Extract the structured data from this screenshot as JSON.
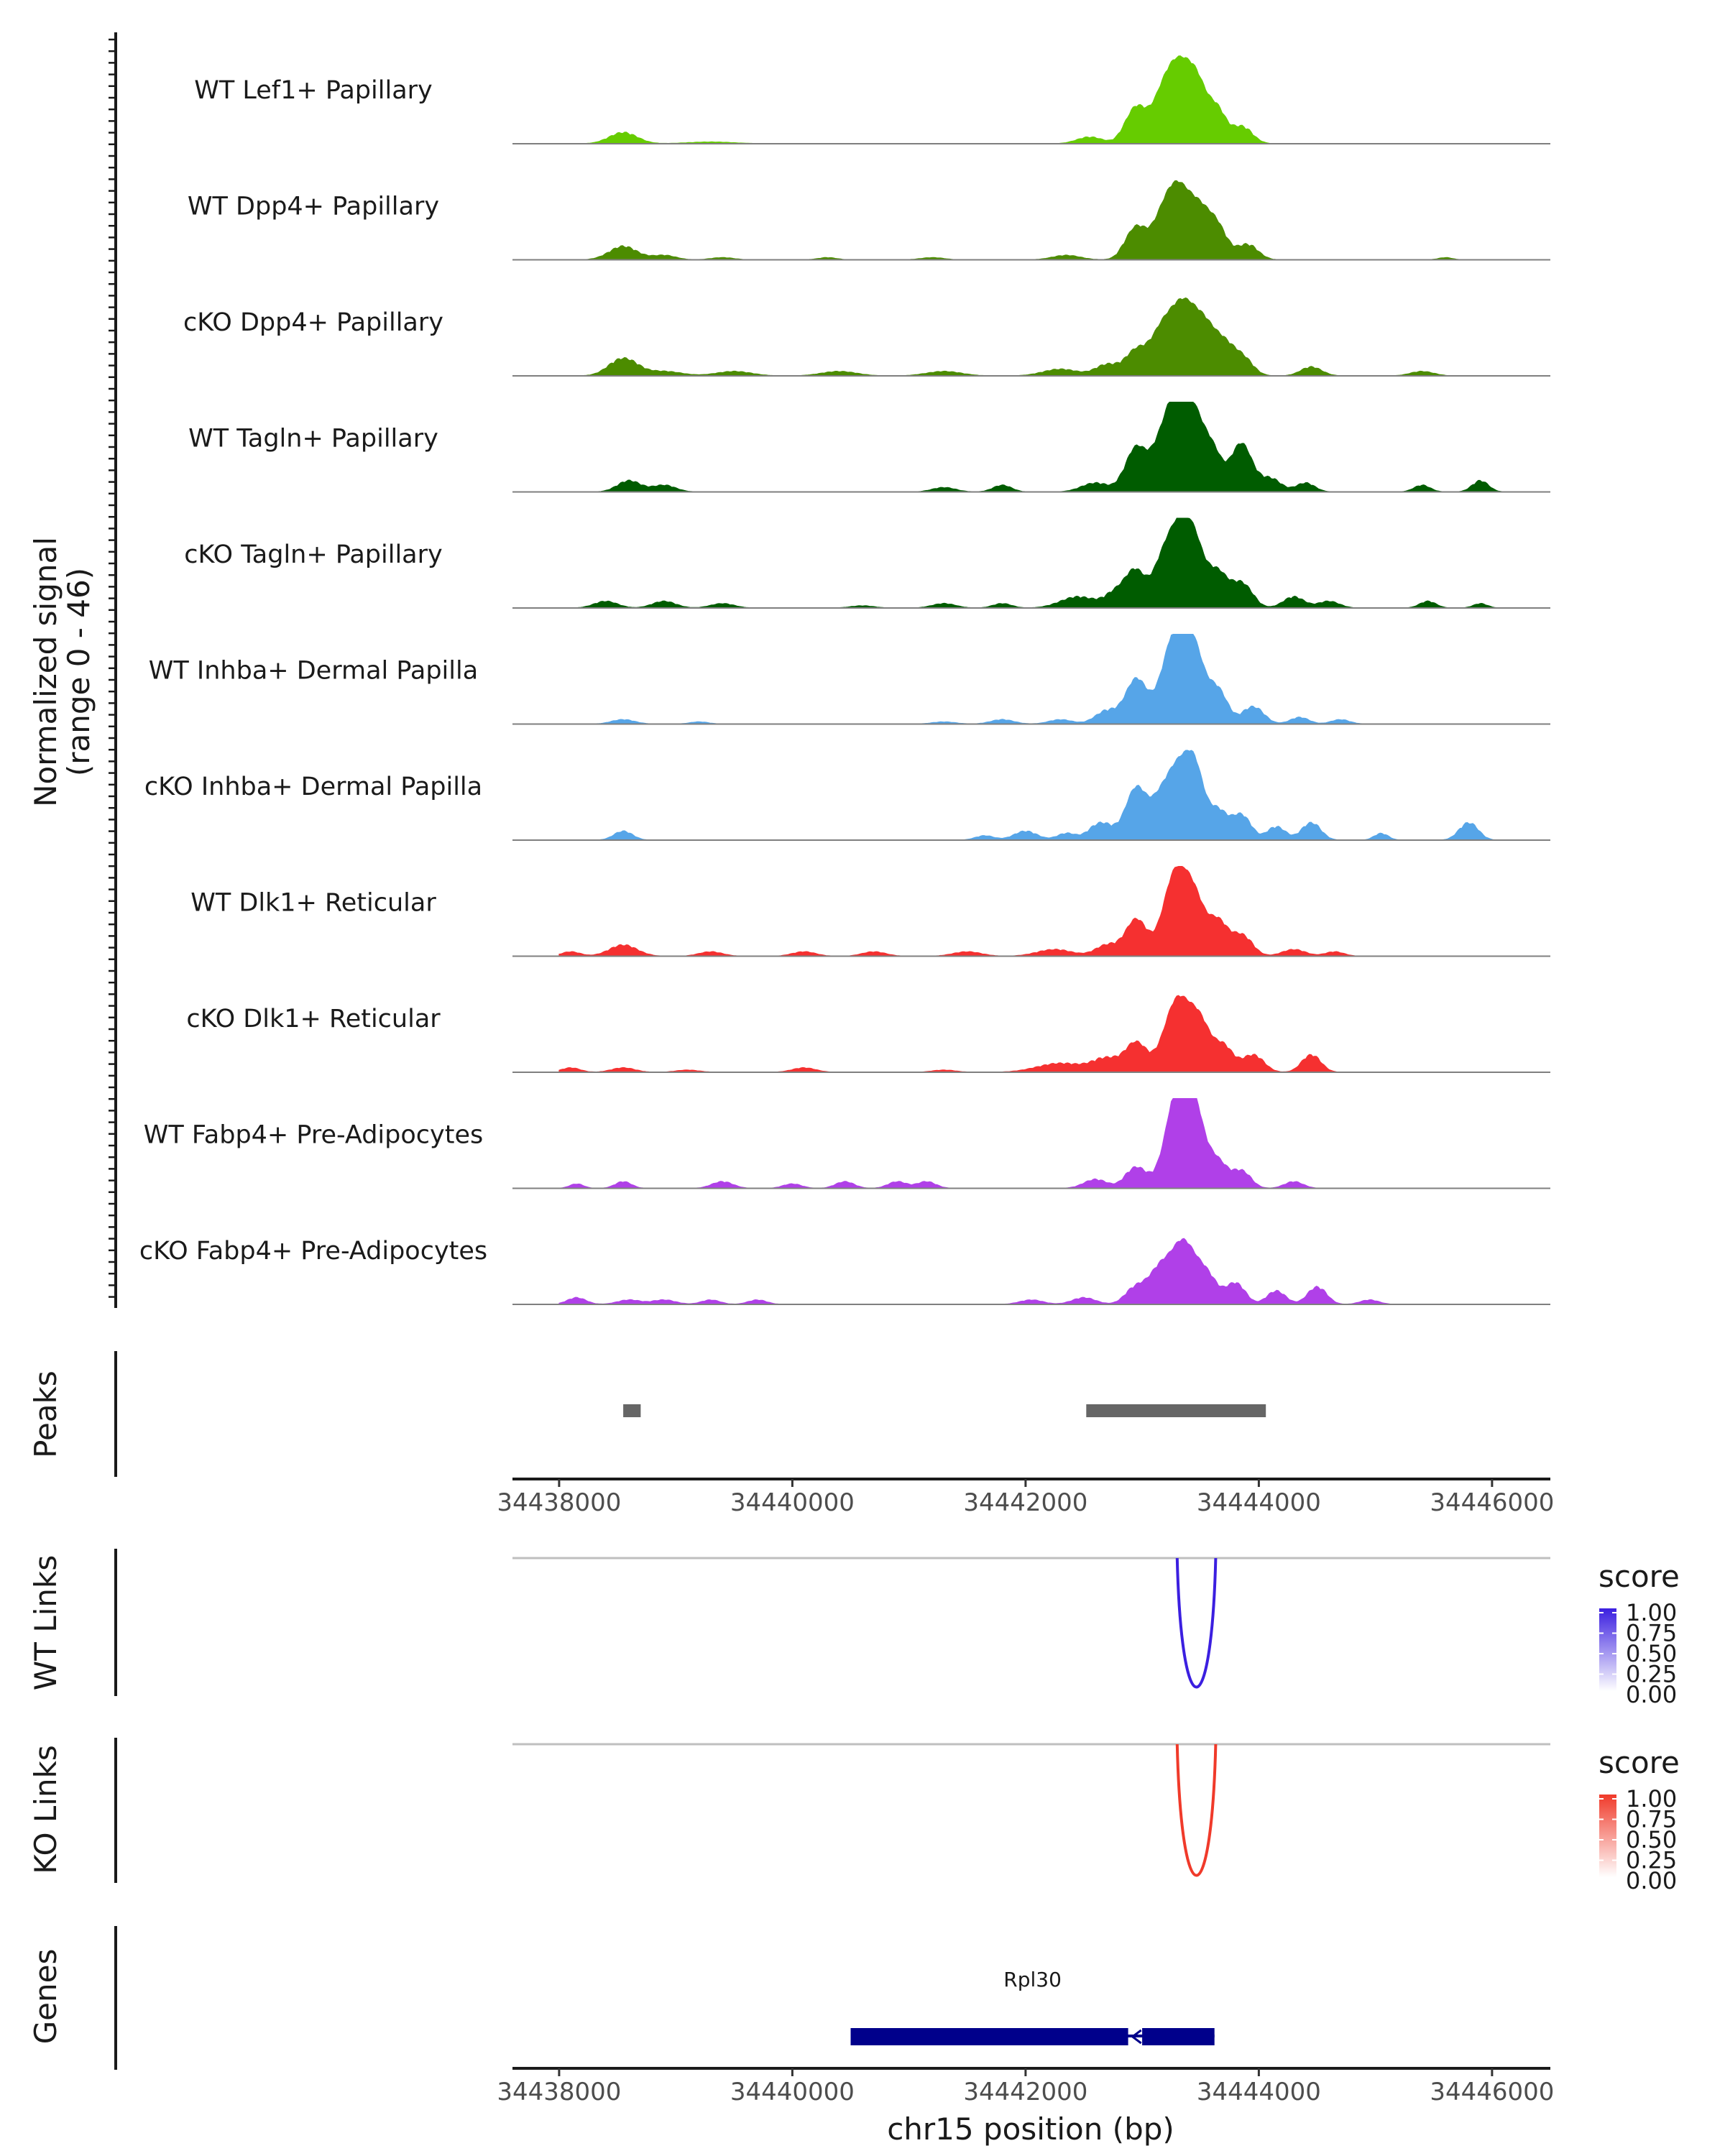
{
  "chart_data": {
    "type": "area",
    "title": "",
    "region": "chr15:34438000-34446000",
    "xlim": [
      34437600,
      34446500
    ],
    "x_ticks": [
      "34438000",
      "34440000",
      "34442000",
      "34444000",
      "34446000"
    ],
    "x_tick_values": [
      34438000,
      34440000,
      34442000,
      34444000,
      34446000
    ],
    "xlabel": "chr15 position (bp)",
    "coverage_ylabel": "Normalized signal",
    "coverage_yrange": "(range 0 - 46)",
    "ylim": [
      0,
      46
    ],
    "series": [
      {
        "name": "WT Lef1+ Papillary",
        "color": "#66cc00",
        "peaks": [
          [
            34438550,
            5,
            120
          ],
          [
            34439300,
            0.8,
            200
          ],
          [
            34442550,
            3,
            110
          ],
          [
            34442950,
            18,
            90
          ],
          [
            34443150,
            12,
            80
          ],
          [
            34443300,
            38,
            110
          ],
          [
            34443480,
            25,
            90
          ],
          [
            34443650,
            14,
            70
          ],
          [
            34443850,
            8,
            90
          ]
        ]
      },
      {
        "name": "WT Dpp4+ Papillary",
        "color": "#4c8c00",
        "peaks": [
          [
            34438550,
            6,
            120
          ],
          [
            34438900,
            2,
            100
          ],
          [
            34439400,
            1,
            100
          ],
          [
            34440300,
            1,
            80
          ],
          [
            34441200,
            1,
            100
          ],
          [
            34442350,
            2,
            120
          ],
          [
            34442950,
            16,
            90
          ],
          [
            34443150,
            10,
            80
          ],
          [
            34443300,
            36,
            110
          ],
          [
            34443500,
            20,
            90
          ],
          [
            34443650,
            14,
            80
          ],
          [
            34443900,
            7,
            90
          ],
          [
            34445600,
            1,
            60
          ]
        ]
      },
      {
        "name": "cKO Dpp4+ Papillary",
        "color": "#4c8c00",
        "peaks": [
          [
            34438550,
            8,
            120
          ],
          [
            34438900,
            2,
            150
          ],
          [
            34439500,
            2,
            150
          ],
          [
            34440400,
            2,
            150
          ],
          [
            34441300,
            2,
            150
          ],
          [
            34442300,
            3,
            150
          ],
          [
            34442700,
            5,
            100
          ],
          [
            34442950,
            12,
            90
          ],
          [
            34443150,
            16,
            90
          ],
          [
            34443350,
            36,
            120
          ],
          [
            34443550,
            18,
            90
          ],
          [
            34443700,
            12,
            80
          ],
          [
            34443850,
            9,
            90
          ],
          [
            34444450,
            4,
            90
          ],
          [
            34445400,
            2,
            100
          ]
        ]
      },
      {
        "name": "WT Tagln+ Papillary",
        "color": "#005c00",
        "peaks": [
          [
            34438600,
            5,
            100
          ],
          [
            34438900,
            3,
            100
          ],
          [
            34441300,
            2,
            100
          ],
          [
            34441800,
            3,
            80
          ],
          [
            34442600,
            4,
            120
          ],
          [
            34442950,
            22,
            90
          ],
          [
            34443150,
            18,
            80
          ],
          [
            34443300,
            46,
            90
          ],
          [
            34443450,
            30,
            80
          ],
          [
            34443600,
            20,
            80
          ],
          [
            34443850,
            24,
            90
          ],
          [
            34444100,
            6,
            90
          ],
          [
            34444400,
            4,
            80
          ],
          [
            34445400,
            3,
            70
          ],
          [
            34445900,
            5,
            70
          ]
        ]
      },
      {
        "name": "cKO Tagln+ Papillary",
        "color": "#005c00",
        "peaks": [
          [
            34438400,
            3,
            100
          ],
          [
            34438900,
            3,
            100
          ],
          [
            34439400,
            2,
            100
          ],
          [
            34440600,
            1,
            100
          ],
          [
            34441300,
            2,
            100
          ],
          [
            34441800,
            2,
            80
          ],
          [
            34442450,
            5,
            150
          ],
          [
            34442800,
            8,
            100
          ],
          [
            34442950,
            16,
            80
          ],
          [
            34443150,
            14,
            80
          ],
          [
            34443300,
            36,
            100
          ],
          [
            34443450,
            28,
            90
          ],
          [
            34443650,
            16,
            80
          ],
          [
            34443850,
            12,
            90
          ],
          [
            34444300,
            5,
            90
          ],
          [
            34444600,
            3,
            90
          ],
          [
            34445450,
            3,
            70
          ],
          [
            34445900,
            2,
            60
          ]
        ]
      },
      {
        "name": "WT Inhba+ Dermal Papilla",
        "color": "#56a5e8",
        "peaks": [
          [
            34438550,
            2,
            100
          ],
          [
            34439200,
            1,
            80
          ],
          [
            34441300,
            1,
            100
          ],
          [
            34441800,
            2,
            100
          ],
          [
            34442300,
            2,
            100
          ],
          [
            34442700,
            6,
            100
          ],
          [
            34442950,
            22,
            90
          ],
          [
            34443280,
            44,
            110
          ],
          [
            34443450,
            30,
            90
          ],
          [
            34443650,
            16,
            80
          ],
          [
            34443950,
            8,
            90
          ],
          [
            34444350,
            3,
            80
          ],
          [
            34444700,
            2,
            80
          ]
        ]
      },
      {
        "name": "cKO Inhba+ Dermal Papilla",
        "color": "#56a5e8",
        "peaks": [
          [
            34438550,
            4,
            80
          ],
          [
            34441650,
            2,
            80
          ],
          [
            34442000,
            4,
            100
          ],
          [
            34442350,
            3,
            80
          ],
          [
            34442650,
            8,
            100
          ],
          [
            34442950,
            26,
            90
          ],
          [
            34443150,
            16,
            80
          ],
          [
            34443300,
            32,
            90
          ],
          [
            34443450,
            34,
            80
          ],
          [
            34443650,
            14,
            80
          ],
          [
            34443850,
            12,
            80
          ],
          [
            34444150,
            6,
            80
          ],
          [
            34444450,
            8,
            80
          ],
          [
            34445050,
            3,
            60
          ],
          [
            34445800,
            8,
            80
          ]
        ]
      },
      {
        "name": "WT Dlk1+ Reticular",
        "color": "#f53030",
        "peaks": [
          [
            34438100,
            2,
            80
          ],
          [
            34438550,
            5,
            120
          ],
          [
            34439300,
            2,
            100
          ],
          [
            34440100,
            2,
            100
          ],
          [
            34440700,
            2,
            100
          ],
          [
            34441500,
            2,
            120
          ],
          [
            34442250,
            3,
            150
          ],
          [
            34442700,
            5,
            100
          ],
          [
            34442950,
            18,
            90
          ],
          [
            34443280,
            40,
            100
          ],
          [
            34443450,
            26,
            90
          ],
          [
            34443650,
            16,
            80
          ],
          [
            34443850,
            10,
            90
          ],
          [
            34444300,
            3,
            100
          ],
          [
            34444650,
            2,
            80
          ]
        ]
      },
      {
        "name": "cKO Dlk1+ Reticular",
        "color": "#f53030",
        "peaks": [
          [
            34438100,
            2,
            80
          ],
          [
            34438550,
            2,
            100
          ],
          [
            34439100,
            1,
            100
          ],
          [
            34440100,
            2,
            100
          ],
          [
            34441300,
            1,
            100
          ],
          [
            34442300,
            4,
            200
          ],
          [
            34442700,
            6,
            120
          ],
          [
            34442950,
            14,
            90
          ],
          [
            34443300,
            36,
            110
          ],
          [
            34443500,
            22,
            90
          ],
          [
            34443700,
            12,
            80
          ],
          [
            34443950,
            8,
            90
          ],
          [
            34444450,
            8,
            80
          ]
        ]
      },
      {
        "name": "WT Fabp4+ Pre-Adipocytes",
        "color": "#b040e8",
        "peaks": [
          [
            34438150,
            2,
            60
          ],
          [
            34438550,
            3,
            70
          ],
          [
            34439400,
            3,
            90
          ],
          [
            34440000,
            2,
            80
          ],
          [
            34440450,
            3,
            80
          ],
          [
            34440900,
            3,
            80
          ],
          [
            34441150,
            3,
            80
          ],
          [
            34442600,
            4,
            100
          ],
          [
            34442950,
            10,
            90
          ],
          [
            34443300,
            46,
            100
          ],
          [
            34443450,
            34,
            90
          ],
          [
            34443650,
            12,
            80
          ],
          [
            34443850,
            8,
            80
          ],
          [
            34444300,
            3,
            80
          ]
        ]
      },
      {
        "name": "cKO Fabp4+ Pre-Adipocytes",
        "color": "#b040e8",
        "peaks": [
          [
            34438150,
            3,
            80
          ],
          [
            34438600,
            2,
            100
          ],
          [
            34438900,
            2,
            100
          ],
          [
            34439300,
            2,
            80
          ],
          [
            34439700,
            2,
            80
          ],
          [
            34442050,
            2,
            100
          ],
          [
            34442500,
            3,
            100
          ],
          [
            34442950,
            8,
            90
          ],
          [
            34443150,
            16,
            90
          ],
          [
            34443350,
            30,
            100
          ],
          [
            34443550,
            14,
            90
          ],
          [
            34443800,
            10,
            80
          ],
          [
            34444150,
            6,
            80
          ],
          [
            34444500,
            8,
            80
          ],
          [
            34444950,
            2,
            80
          ]
        ]
      }
    ],
    "peaks_track": {
      "label": "Peaks",
      "regions": [
        [
          34438550,
          34438700
        ],
        [
          34442520,
          34444060
        ]
      ],
      "color": "#666666"
    },
    "links": [
      {
        "label": "WT Links",
        "start": 34443300,
        "end": 34443630,
        "score": 1.0,
        "color": "#3b1fe0",
        "legend": {
          "title": "score",
          "ticks": [
            "1.00",
            "0.75",
            "0.50",
            "0.25",
            "0.00"
          ],
          "high": "#3b1fe0",
          "low": "#ffffff"
        }
      },
      {
        "label": "KO Links",
        "start": 34443300,
        "end": 34443630,
        "score": 1.0,
        "color": "#f03a2a",
        "legend": {
          "title": "score",
          "ticks": [
            "1.00",
            "0.75",
            "0.50",
            "0.25",
            "0.00"
          ],
          "high": "#f03a2a",
          "low": "#ffffff"
        }
      }
    ],
    "genes": {
      "label": "Genes",
      "items": [
        {
          "name": "Rpl30",
          "start": 34440500,
          "end": 34443620,
          "gap": [
            34442880,
            34443000
          ],
          "strand": "-",
          "color": "#00008b"
        }
      ]
    }
  }
}
